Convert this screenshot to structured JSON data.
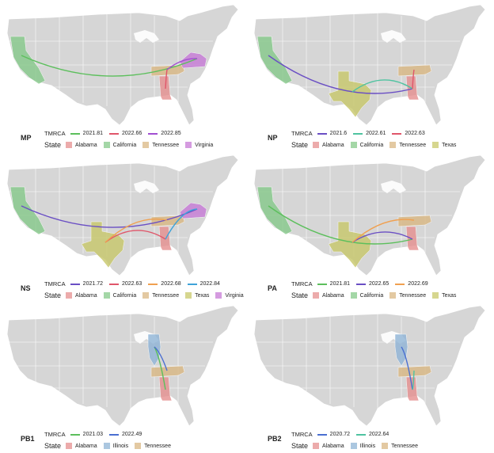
{
  "legend_titles": {
    "tmrca": "TMRCA",
    "state": "State"
  },
  "colors": {
    "states": {
      "Alabama": "#e58f8f",
      "California": "#86c98a",
      "Tennessee": "#d9b783",
      "Texas": "#c8c86a",
      "Virginia": "#c77ad6",
      "Illinois": "#8fb4d6"
    },
    "map_fill": "#d6d6d6",
    "map_border": "#ffffff"
  },
  "panels": [
    {
      "label": "MP",
      "tmrca": [
        {
          "value": "2021.81",
          "color": "#5cbf5c"
        },
        {
          "value": "2022.66",
          "color": "#e0566a"
        },
        {
          "value": "2022.85",
          "color": "#a14fd1"
        }
      ],
      "states": [
        "Alabama",
        "California",
        "Tennessee",
        "Virginia"
      ]
    },
    {
      "label": "NP",
      "tmrca": [
        {
          "value": "2021.6",
          "color": "#6a4fc4"
        },
        {
          "value": "2022.61",
          "color": "#4fc3a0"
        },
        {
          "value": "2022.63",
          "color": "#e0566a"
        }
      ],
      "states": [
        "Alabama",
        "California",
        "Tennessee",
        "Texas"
      ]
    },
    {
      "label": "NS",
      "tmrca": [
        {
          "value": "2021.72",
          "color": "#6a4fc4"
        },
        {
          "value": "2022.63",
          "color": "#e0566a"
        },
        {
          "value": "2022.68",
          "color": "#f0a050"
        },
        {
          "value": "2022.84",
          "color": "#3fa3d9"
        }
      ],
      "states": [
        "Alabama",
        "California",
        "Tennessee",
        "Texas",
        "Virginia"
      ]
    },
    {
      "label": "PA",
      "tmrca": [
        {
          "value": "2021.81",
          "color": "#5cbf5c"
        },
        {
          "value": "2022.65",
          "color": "#6a4fc4"
        },
        {
          "value": "2022.69",
          "color": "#f0a050"
        }
      ],
      "states": [
        "Alabama",
        "California",
        "Tennessee",
        "Texas"
      ]
    },
    {
      "label": "PB1",
      "tmrca": [
        {
          "value": "2021.03",
          "color": "#5cbf5c"
        },
        {
          "value": "2022.49",
          "color": "#4a6fd1"
        }
      ],
      "states": [
        "Alabama",
        "Illinois",
        "Tennessee"
      ]
    },
    {
      "label": "PB2",
      "tmrca": [
        {
          "value": "2020.72",
          "color": "#4a6fd1"
        },
        {
          "value": "2022.64",
          "color": "#4fc3a0"
        }
      ],
      "states": [
        "Alabama",
        "Illinois",
        "Tennessee"
      ]
    }
  ]
}
